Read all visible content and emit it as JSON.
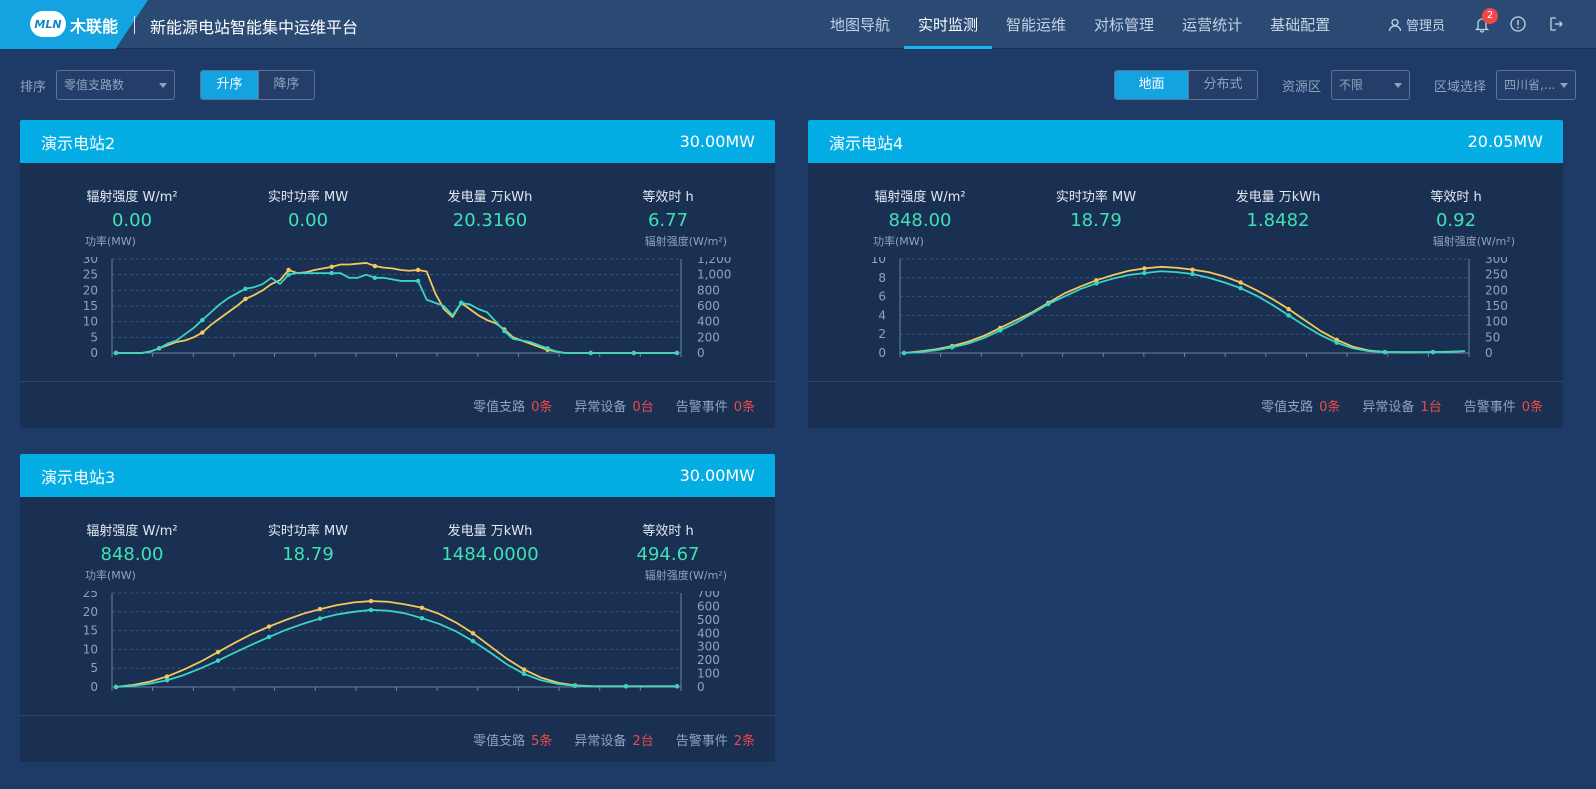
{
  "header": {
    "logo_mark": "MLN",
    "logo_text": "木联能",
    "app_title": "新能源电站智能集中运维平台",
    "nav": [
      "地图导航",
      "实时监测",
      "智能运维",
      "对标管理",
      "运营统计",
      "基础配置"
    ],
    "active_nav": 1,
    "user": "管理员",
    "notification_count": "2"
  },
  "filters": {
    "sort_label": "排序",
    "sort_value": "零值支路数",
    "asc": "升序",
    "desc": "降序",
    "type_ground": "地面",
    "type_distributed": "分布式",
    "resource_label": "资源区",
    "resource_value": "不限",
    "region_label": "区域选择",
    "region_value": "四川省,..."
  },
  "labels": {
    "irradiance": "辐射强度 W/m²",
    "power": "实时功率 MW",
    "energy": "发电量 万kWh",
    "hours": "等效时 h",
    "left_unit": "功率(MW)",
    "right_unit": "辐射强度(W/m²)",
    "zero_branch": "零值支路",
    "abnormal": "异常设备",
    "alarm": "告警事件"
  },
  "colors": {
    "power_line": "#3ad4c4",
    "irradiance_line": "#f3c95b",
    "accent": "#04ade3",
    "alert": "#f04848"
  },
  "stations": [
    {
      "name": "演示电站2",
      "capacity": "30.00MW",
      "irradiance": "0.00",
      "power": "0.00",
      "energy": "20.3160",
      "hours": "6.77",
      "zero_branch": "0条",
      "abnormal": "0台",
      "alarm": "0条"
    },
    {
      "name": "演示电站4",
      "capacity": "20.05MW",
      "irradiance": "848.00",
      "power": "18.79",
      "energy": "1.8482",
      "hours": "0.92",
      "zero_branch": "0条",
      "abnormal": "1台",
      "alarm": "0条"
    },
    {
      "name": "演示电站3",
      "capacity": "30.00MW",
      "irradiance": "848.00",
      "power": "18.79",
      "energy": "1484.0000",
      "hours": "494.67",
      "zero_branch": "5条",
      "abnormal": "2台",
      "alarm": "2条"
    }
  ],
  "chart_data": [
    {
      "type": "line",
      "left_axis": {
        "label": "功率(MW)",
        "ylim": [
          0,
          30
        ],
        "ticks": [
          "0",
          "5",
          "10",
          "15",
          "20",
          "25",
          "30"
        ]
      },
      "right_axis": {
        "label": "辐射强度(W/m²)",
        "ylim": [
          0,
          1200
        ],
        "ticks": [
          "0",
          "200",
          "400",
          "600",
          "800",
          "1,000",
          "1,200"
        ]
      },
      "series": [
        {
          "axis": "left",
          "values": [
            0,
            0,
            0,
            0,
            0.5,
            1.5,
            3,
            4,
            6,
            8,
            10.5,
            13,
            15.5,
            17.5,
            19,
            20.5,
            21,
            22,
            24,
            22,
            25,
            25.5,
            25.5,
            25.5,
            25.5,
            25.5,
            25.5,
            24,
            24,
            25,
            24,
            24,
            23.5,
            23,
            23,
            23,
            17,
            16,
            15,
            12,
            16,
            15.5,
            14,
            13,
            10,
            7,
            4.5,
            4,
            3.5,
            2.5,
            1.5,
            0.5,
            0,
            0,
            0,
            0,
            0,
            0,
            0,
            0,
            0,
            0,
            0,
            0,
            0,
            0
          ]
        },
        {
          "axis": "right",
          "values": [
            0,
            0,
            0,
            0,
            20,
            60,
            100,
            140,
            160,
            200,
            260,
            360,
            440,
            520,
            600,
            690,
            740,
            800,
            880,
            930,
            1060,
            1020,
            1030,
            1060,
            1080,
            1100,
            1130,
            1130,
            1140,
            1150,
            1110,
            1090,
            1080,
            1060,
            1050,
            1060,
            1040,
            760,
            560,
            460,
            640,
            560,
            480,
            420,
            380,
            300,
            200,
            160,
            120,
            80,
            40,
            20,
            0,
            0,
            0,
            0,
            0,
            0,
            0,
            0,
            0,
            0,
            0,
            0,
            0,
            0
          ]
        }
      ]
    },
    {
      "type": "line",
      "left_axis": {
        "label": "功率(MW)",
        "ylim": [
          0,
          10
        ],
        "ticks": [
          "0",
          "2",
          "4",
          "6",
          "8",
          "10"
        ]
      },
      "right_axis": {
        "label": "辐射强度(W/m²)",
        "ylim": [
          0,
          300
        ],
        "ticks": [
          "0",
          "50",
          "100",
          "150",
          "200",
          "250",
          "300"
        ]
      },
      "series": [
        {
          "axis": "left",
          "values": [
            0,
            0.1,
            0.3,
            0.6,
            1.0,
            1.6,
            2.4,
            3.2,
            4.2,
            5.2,
            6.0,
            6.8,
            7.4,
            7.9,
            8.3,
            8.5,
            8.7,
            8.6,
            8.4,
            8.0,
            7.5,
            6.9,
            6.1,
            5.1,
            4.0,
            2.9,
            1.9,
            1.1,
            0.5,
            0.2,
            0.1,
            0.1,
            0.1,
            0.1,
            0.1,
            0.2
          ]
        },
        {
          "axis": "right",
          "values": [
            0,
            5,
            12,
            22,
            36,
            55,
            80,
            105,
            130,
            160,
            190,
            212,
            232,
            248,
            262,
            270,
            275,
            272,
            266,
            258,
            244,
            225,
            200,
            172,
            140,
            105,
            70,
            42,
            20,
            8,
            3,
            2,
            2,
            3,
            4,
            6
          ]
        }
      ]
    },
    {
      "type": "line",
      "left_axis": {
        "label": "功率(MW)",
        "ylim": [
          0,
          25
        ],
        "ticks": [
          "0",
          "5",
          "10",
          "15",
          "20",
          "25"
        ]
      },
      "right_axis": {
        "label": "辐射强度(W/m²)",
        "ylim": [
          0,
          700
        ],
        "ticks": [
          "0",
          "100",
          "200",
          "300",
          "400",
          "500",
          "600",
          "700"
        ]
      },
      "series": [
        {
          "axis": "left",
          "values": [
            0,
            0.3,
            0.9,
            1.8,
            3.2,
            5.0,
            7.0,
            9.2,
            11.3,
            13.3,
            15.2,
            16.8,
            18.2,
            19.3,
            20.0,
            20.5,
            20.3,
            19.6,
            18.3,
            16.8,
            14.8,
            12.2,
            9.2,
            6.0,
            3.5,
            1.8,
            0.8,
            0.3,
            0.2,
            0.2,
            0.2,
            0.2,
            0.2,
            0.2
          ]
        },
        {
          "axis": "right",
          "values": [
            0,
            15,
            40,
            78,
            130,
            190,
            260,
            330,
            395,
            450,
            500,
            545,
            580,
            610,
            630,
            640,
            635,
            615,
            590,
            545,
            480,
            400,
            305,
            210,
            130,
            70,
            32,
            12,
            6,
            5,
            5,
            5,
            5,
            5
          ]
        }
      ]
    }
  ]
}
